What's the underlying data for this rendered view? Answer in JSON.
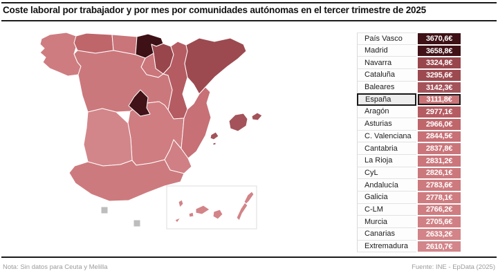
{
  "title": "Coste laboral por trabajador y por mes por comunidades autónomas en el tercer trimestre de 2025",
  "footer": {
    "note": "Nota: Sin datos para Ceuta y Melilla",
    "source": "Fuente: INE - EpData (2025)"
  },
  "chart_data": {
    "type": "heatmap",
    "subtype": "choropleth-map-of-spain-with-ranking-table",
    "title": "Coste laboral por trabajador y por mes por comunidades autónomas en el tercer trimestre de 2025",
    "unit": "euros per worker per month",
    "legend_position": "right-ranking-table",
    "no_data_regions": [
      "Ceuta",
      "Melilla"
    ],
    "no_data_color": "#bdbdbd",
    "border_color": "#ffffff",
    "rows": [
      {
        "key": "paisvasco",
        "label": "País Vasco",
        "value": 3670.6,
        "display": "3670,6€",
        "color": "#3d1116",
        "highlight": false
      },
      {
        "key": "madrid",
        "label": "Madrid",
        "value": 3658.8,
        "display": "3658,8€",
        "color": "#411217",
        "highlight": false
      },
      {
        "key": "navarra",
        "label": "Navarra",
        "value": 3324.8,
        "display": "3324,8€",
        "color": "#98464c",
        "highlight": false
      },
      {
        "key": "cataluna",
        "label": "Cataluña",
        "value": 3295.6,
        "display": "3295,6€",
        "color": "#9c4a50",
        "highlight": false
      },
      {
        "key": "baleares",
        "label": "Baleares",
        "value": 3142.3,
        "display": "3142,3€",
        "color": "#a4535a",
        "highlight": false
      },
      {
        "key": "espana",
        "label": "España",
        "value": 3111.8,
        "display": "3111,8€",
        "color": "#ca7478",
        "highlight": true
      },
      {
        "key": "aragon",
        "label": "Aragón",
        "value": 2977.1,
        "display": "2977,1€",
        "color": "#b55c62",
        "highlight": false
      },
      {
        "key": "asturias",
        "label": "Asturias",
        "value": 2966.0,
        "display": "2966,0€",
        "color": "#bf666b",
        "highlight": false
      },
      {
        "key": "valenciana",
        "label": "C. Valenciana",
        "value": 2844.5,
        "display": "2844,5€",
        "color": "#c77076",
        "highlight": false
      },
      {
        "key": "cantabria",
        "label": "Cantabria",
        "value": 2837.8,
        "display": "2837,8€",
        "color": "#c9757a",
        "highlight": false
      },
      {
        "key": "larioja",
        "label": "La Rioja",
        "value": 2831.2,
        "display": "2831,2€",
        "color": "#ca767b",
        "highlight": false
      },
      {
        "key": "cyl",
        "label": "CyL",
        "value": 2826.1,
        "display": "2826,1€",
        "color": "#cb787c",
        "highlight": false
      },
      {
        "key": "andalucia",
        "label": "Andalucía",
        "value": 2783.6,
        "display": "2783,6€",
        "color": "#cd7a7e",
        "highlight": false
      },
      {
        "key": "galicia",
        "label": "Galicia",
        "value": 2778.1,
        "display": "2778,1€",
        "color": "#ce7c80",
        "highlight": false
      },
      {
        "key": "clm",
        "label": "C-LM",
        "value": 2766.2,
        "display": "2766,2€",
        "color": "#cf7d81",
        "highlight": false
      },
      {
        "key": "murcia",
        "label": "Murcia",
        "value": 2705.6,
        "display": "2705,6€",
        "color": "#d08084",
        "highlight": false
      },
      {
        "key": "canarias",
        "label": "Canarias",
        "value": 2633.2,
        "display": "2633,2€",
        "color": "#d28488",
        "highlight": false
      },
      {
        "key": "extremadura",
        "label": "Extremadura",
        "value": 2610.7,
        "display": "2610,7€",
        "color": "#d3868a",
        "highlight": false
      }
    ]
  }
}
